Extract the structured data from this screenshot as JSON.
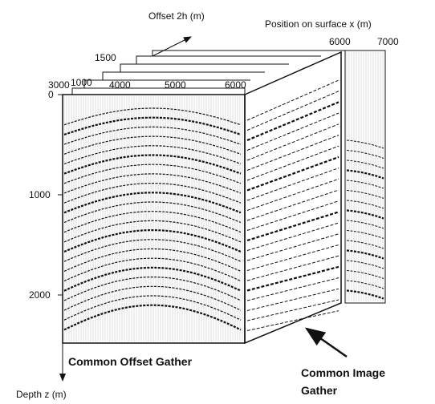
{
  "header": {
    "offset_axis_title": "Offset 2h (m)",
    "position_axis_title": "Position on surface x (m)"
  },
  "offset_ticks": [
    "1000",
    "1500"
  ],
  "position_ticks_front": [
    "3000",
    "4000",
    "5000",
    "6000"
  ],
  "position_ticks_back": [
    "6000",
    "7000"
  ],
  "depth_ticks": [
    "0",
    "1000",
    "2000"
  ],
  "depth_axis_title": "Depth z (m)",
  "labels": {
    "common_offset_gather": "Common Offset Gather",
    "common_image_gather": [
      "Common Image",
      "Gather"
    ]
  }
}
